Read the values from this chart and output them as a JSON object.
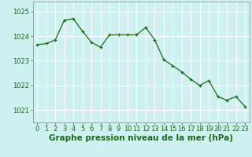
{
  "x": [
    0,
    1,
    2,
    3,
    4,
    5,
    6,
    7,
    8,
    9,
    10,
    11,
    12,
    13,
    14,
    15,
    16,
    17,
    18,
    19,
    20,
    21,
    22,
    23
  ],
  "y": [
    1023.65,
    1023.7,
    1023.85,
    1024.65,
    1024.7,
    1024.2,
    1023.75,
    1023.55,
    1024.05,
    1024.05,
    1024.05,
    1024.05,
    1024.35,
    1023.85,
    1023.05,
    1022.8,
    1022.55,
    1022.25,
    1022.0,
    1022.2,
    1021.55,
    1021.4,
    1021.55,
    1021.15
  ],
  "line_color": "#1a6b1a",
  "marker": "+",
  "marker_size": 3,
  "background_color": "#cff0f0",
  "grid_color": "#ffffff",
  "xlabel": "Graphe pression niveau de la mer (hPa)",
  "xlabel_color": "#1a6b1a",
  "ylim": [
    1020.5,
    1025.4
  ],
  "yticks": [
    1021,
    1022,
    1023,
    1024,
    1025
  ],
  "xticks": [
    0,
    1,
    2,
    3,
    4,
    5,
    6,
    7,
    8,
    9,
    10,
    11,
    12,
    13,
    14,
    15,
    16,
    17,
    18,
    19,
    20,
    21,
    22,
    23
  ],
  "tick_color": "#1a6b1a",
  "spine_color": "#888888",
  "xlabel_fontsize": 7.5,
  "tick_fontsize": 6.0
}
